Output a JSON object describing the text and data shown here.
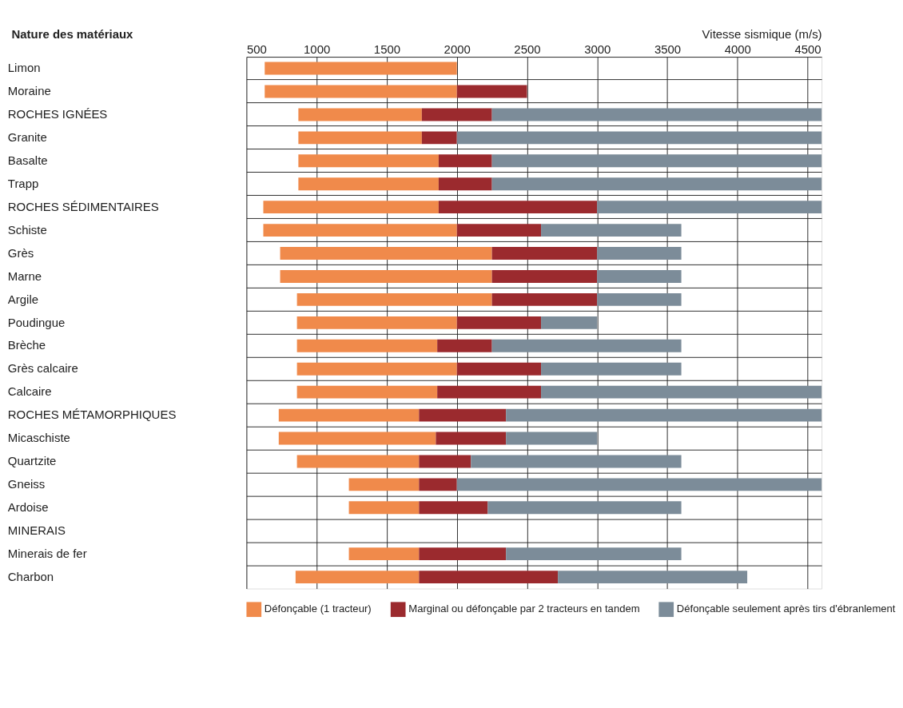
{
  "chart_data": {
    "type": "bar",
    "orientation": "horizontal",
    "xlabel": "Vitesse sismique (m/s)",
    "ylabel": "Nature des matériaux",
    "categories": [
      "Limon",
      "Moraine",
      "ROCHES IGNÉES",
      "Granite",
      "Basalte",
      "Trapp",
      "ROCHES SÉDIMENTAIRES",
      "Schiste",
      "Grès",
      "Marne",
      "Argile",
      "Poudingue",
      "Brèche",
      "Grès calcaire",
      "Calcaire",
      "ROCHES MÉTAMORPHIQUES",
      "Micaschiste",
      "Quartzite",
      "Gneiss",
      "Ardoise",
      "MINERAIS",
      "Minerais de fer",
      "Charbon"
    ],
    "series": [
      {
        "name": "Défonçable (1 tracteur)",
        "color": "#f08a4b",
        "base": [
          630,
          630,
          870,
          870,
          870,
          870,
          620,
          620,
          740,
          740,
          860,
          860,
          860,
          860,
          860,
          730,
          730,
          860,
          1230,
          1230,
          null,
          1230,
          850
        ],
        "values": [
          1370,
          1370,
          880,
          880,
          1000,
          1000,
          1250,
          1380,
          1510,
          1510,
          1390,
          1140,
          1000,
          1140,
          1000,
          1000,
          1120,
          870,
          500,
          500,
          null,
          500,
          880
        ]
      },
      {
        "name": "Marginal ou défonçable par 2 tracteurs en tandem",
        "color": "#9b2a2e",
        "base": [
          null,
          2000,
          1750,
          1750,
          1870,
          1870,
          1870,
          2000,
          2250,
          2250,
          2250,
          2000,
          1860,
          2000,
          1860,
          1730,
          1850,
          1730,
          1730,
          1730,
          null,
          1730,
          1730
        ],
        "values": [
          null,
          500,
          500,
          250,
          380,
          380,
          1130,
          600,
          750,
          750,
          750,
          600,
          390,
          600,
          740,
          620,
          500,
          370,
          270,
          490,
          null,
          620,
          990
        ]
      },
      {
        "name": "Défonçable seulement après tirs d'ébranlement",
        "color": "#7c8c99",
        "base": [
          null,
          null,
          2250,
          2000,
          2250,
          2250,
          3000,
          2600,
          3000,
          3000,
          3000,
          2600,
          2250,
          2600,
          2600,
          2350,
          2350,
          2100,
          2000,
          2220,
          null,
          2350,
          2720
        ],
        "values": [
          null,
          null,
          2350,
          2600,
          2350,
          2350,
          1600,
          1000,
          600,
          600,
          600,
          400,
          1350,
          1000,
          2000,
          2250,
          650,
          1500,
          2600,
          1380,
          null,
          1250,
          1350
        ]
      }
    ],
    "xlim": [
      500,
      4600
    ],
    "xticks": [
      500,
      1000,
      1500,
      2000,
      2500,
      3000,
      3500,
      4000,
      4500
    ],
    "grid": true,
    "legend": "bottom"
  }
}
